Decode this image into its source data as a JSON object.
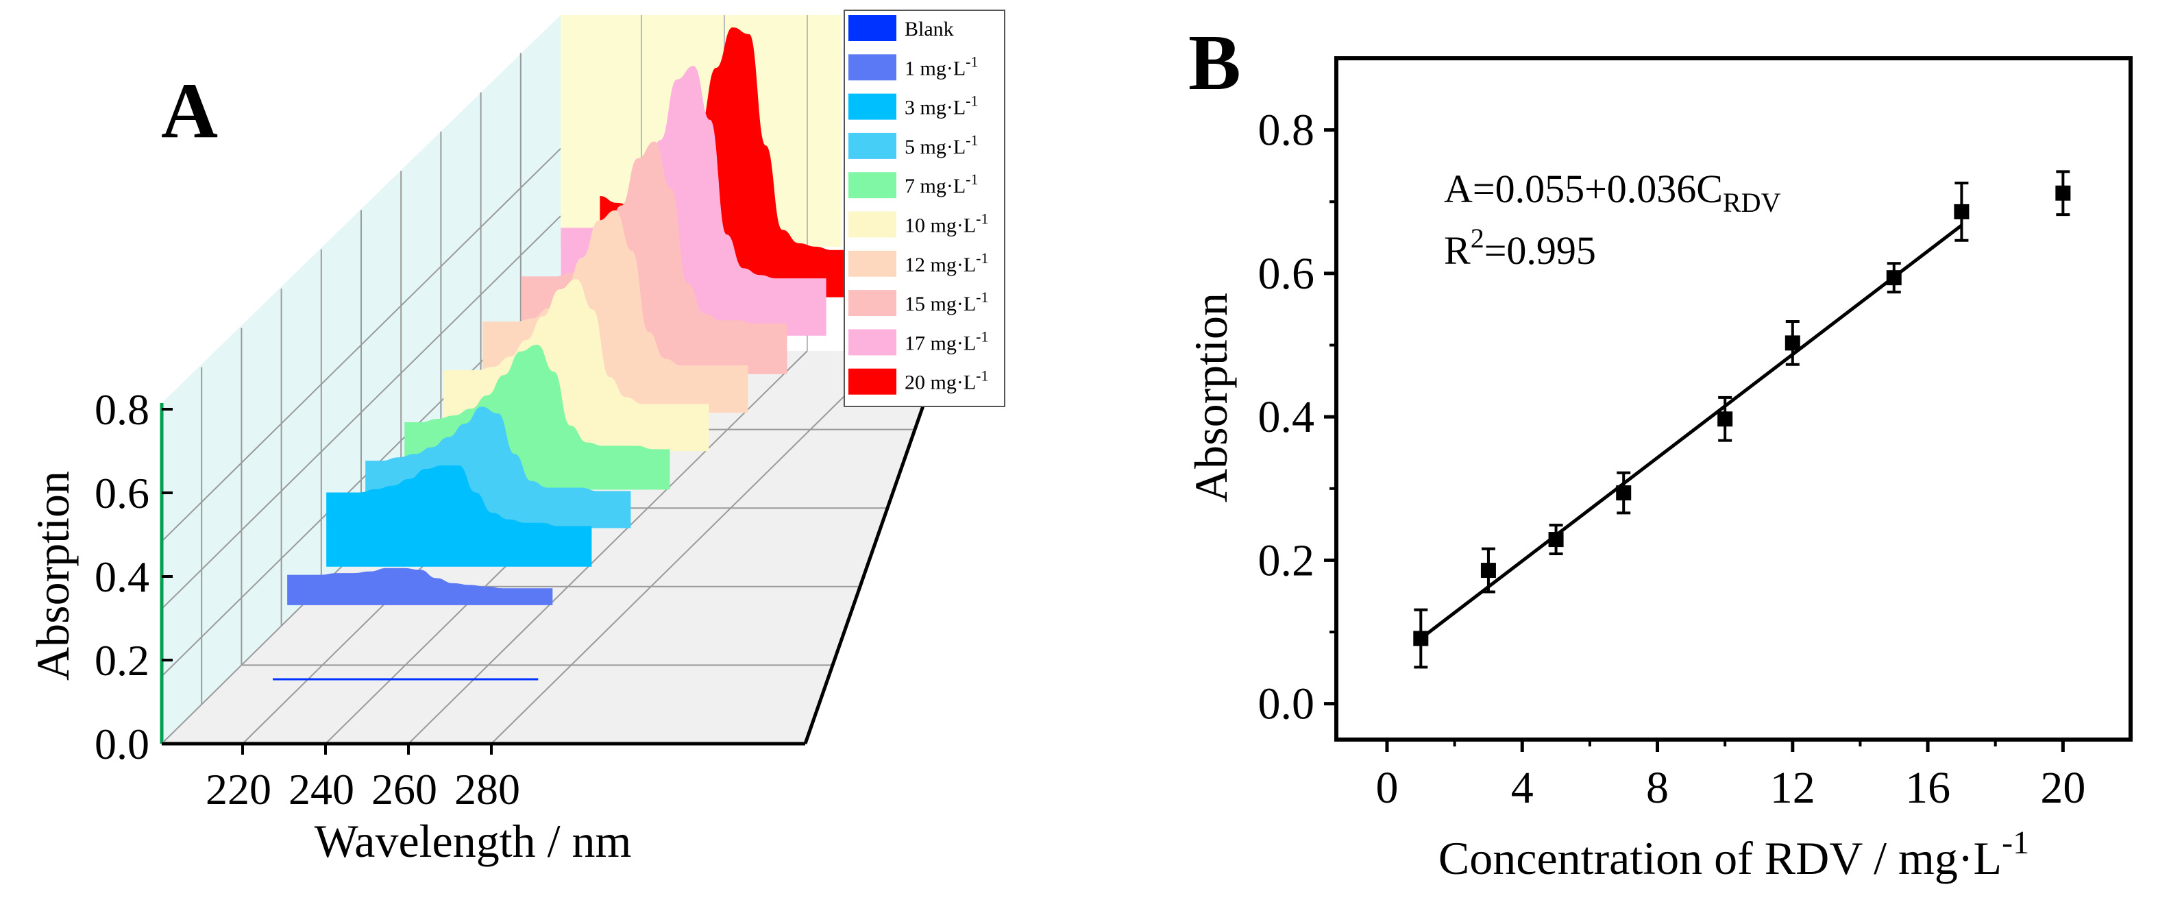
{
  "chart_data": [
    {
      "panel": "A",
      "type": "area",
      "subtype": "3d-waterfall",
      "title": "",
      "xlabel": "Wavelength / nm",
      "ylabel": "Absorption",
      "xticks": [
        "220",
        "240",
        "260",
        "280"
      ],
      "yticks": [
        "0.0",
        "0.2",
        "0.4",
        "0.6",
        "0.8"
      ],
      "xlim": [
        210,
        290
      ],
      "ylim": [
        0,
        0.8
      ],
      "grid": true,
      "legend": "top-right",
      "x": [
        222,
        226,
        230,
        234,
        238,
        242,
        246,
        250,
        254,
        258,
        262,
        266,
        270,
        274,
        278,
        282,
        286
      ],
      "series": [
        {
          "name": "Blank",
          "label": "Blank",
          "sup": "",
          "color": "#0033ff",
          "values": [
            0.005,
            0.005,
            0.005,
            0.005,
            0.005,
            0.005,
            0.005,
            0.005,
            0.005,
            0.005,
            0.005,
            0.005,
            0.005,
            0.005,
            0.005,
            0.005,
            0.005
          ]
        },
        {
          "name": "1 mg·L-1",
          "label": "1 mg·L",
          "sup": "-1",
          "color": "#5b78f5",
          "values": [
            0.09,
            0.09,
            0.09,
            0.095,
            0.095,
            0.1,
            0.11,
            0.11,
            0.105,
            0.08,
            0.065,
            0.06,
            0.055,
            0.05,
            0.05,
            0.05,
            0.05
          ]
        },
        {
          "name": "3 mg·L-1",
          "label": "3 mg·L",
          "sup": "-1",
          "color": "#00bfff",
          "values": [
            0.22,
            0.22,
            0.22,
            0.23,
            0.24,
            0.26,
            0.29,
            0.3,
            0.3,
            0.22,
            0.16,
            0.14,
            0.13,
            0.13,
            0.12,
            0.12,
            0.12
          ]
        },
        {
          "name": "5 mg·L-1",
          "label": "5 mg·L",
          "sup": "-1",
          "color": "#46cef7",
          "values": [
            0.2,
            0.2,
            0.21,
            0.22,
            0.24,
            0.27,
            0.31,
            0.36,
            0.34,
            0.22,
            0.14,
            0.12,
            0.12,
            0.12,
            0.11,
            0.11,
            0.11
          ]
        },
        {
          "name": "7 mg·L-1",
          "label": "7 mg·L",
          "sup": "-1",
          "color": "#80f7a5",
          "values": [
            0.2,
            0.2,
            0.21,
            0.22,
            0.24,
            0.28,
            0.34,
            0.41,
            0.43,
            0.35,
            0.19,
            0.14,
            0.13,
            0.13,
            0.13,
            0.12,
            0.12
          ]
        },
        {
          "name": "10 mg·L-1",
          "label": "10 mg·L",
          "sup": "-1",
          "color": "#fdf6c6",
          "values": [
            0.24,
            0.24,
            0.24,
            0.25,
            0.28,
            0.33,
            0.4,
            0.48,
            0.51,
            0.42,
            0.22,
            0.16,
            0.14,
            0.14,
            0.14,
            0.14,
            0.14
          ]
        },
        {
          "name": "12 mg·L-1",
          "label": "12 mg·L",
          "sup": "-1",
          "color": "#fdd8bf",
          "values": [
            0.27,
            0.27,
            0.27,
            0.28,
            0.31,
            0.37,
            0.46,
            0.57,
            0.6,
            0.48,
            0.24,
            0.16,
            0.14,
            0.14,
            0.14,
            0.14,
            0.14
          ]
        },
        {
          "name": "15 mg·L-1",
          "label": "15 mg·L",
          "sup": "-1",
          "color": "#fdbebe",
          "values": [
            0.29,
            0.29,
            0.29,
            0.3,
            0.33,
            0.4,
            0.5,
            0.64,
            0.69,
            0.55,
            0.27,
            0.18,
            0.16,
            0.16,
            0.15,
            0.15,
            0.15
          ]
        },
        {
          "name": "17 mg·L-1",
          "label": "17 mg·L",
          "sup": "-1",
          "color": "#fdb1dd",
          "values": [
            0.32,
            0.32,
            0.32,
            0.33,
            0.37,
            0.45,
            0.58,
            0.76,
            0.8,
            0.64,
            0.3,
            0.2,
            0.18,
            0.17,
            0.17,
            0.17,
            0.17
          ]
        },
        {
          "name": "20 mg·L-1",
          "label": "20 mg·L",
          "sup": "-1",
          "color": "#ff0000",
          "values": [
            0.3,
            0.28,
            0.27,
            0.27,
            0.29,
            0.36,
            0.5,
            0.68,
            0.8,
            0.78,
            0.45,
            0.2,
            0.16,
            0.15,
            0.14,
            0.14,
            0.14
          ]
        }
      ],
      "panel_label": "A"
    },
    {
      "panel": "B",
      "type": "scatter",
      "title": "",
      "xlabel": "Concentration of RDV / mg·L",
      "xlabel_sup": "-1",
      "ylabel": "Absorption",
      "xticks": [
        "0",
        "4",
        "8",
        "12",
        "16",
        "20"
      ],
      "yticks": [
        "0.0",
        "0.2",
        "0.4",
        "0.6",
        "0.8"
      ],
      "xlim": [
        -1.5,
        22
      ],
      "ylim": [
        -0.05,
        0.9
      ],
      "grid": false,
      "points": [
        {
          "x": 1,
          "y": 0.091,
          "err": 0.04
        },
        {
          "x": 3,
          "y": 0.186,
          "err": 0.03
        },
        {
          "x": 5,
          "y": 0.229,
          "err": 0.02
        },
        {
          "x": 7,
          "y": 0.294,
          "err": 0.028
        },
        {
          "x": 10,
          "y": 0.397,
          "err": 0.03
        },
        {
          "x": 12,
          "y": 0.503,
          "err": 0.03
        },
        {
          "x": 15,
          "y": 0.594,
          "err": 0.02
        },
        {
          "x": 17,
          "y": 0.686,
          "err": 0.04
        },
        {
          "x": 20,
          "y": 0.712,
          "err": 0.03
        }
      ],
      "fit": {
        "intercept": 0.055,
        "slope": 0.036,
        "x_range": [
          1,
          17
        ]
      },
      "equation_main": "A=0.055+0.036C",
      "equation_sub": "RDV",
      "r2_main": "R",
      "r2_sup": "2",
      "r2_value": "=0.995",
      "panel_label": "B"
    }
  ]
}
